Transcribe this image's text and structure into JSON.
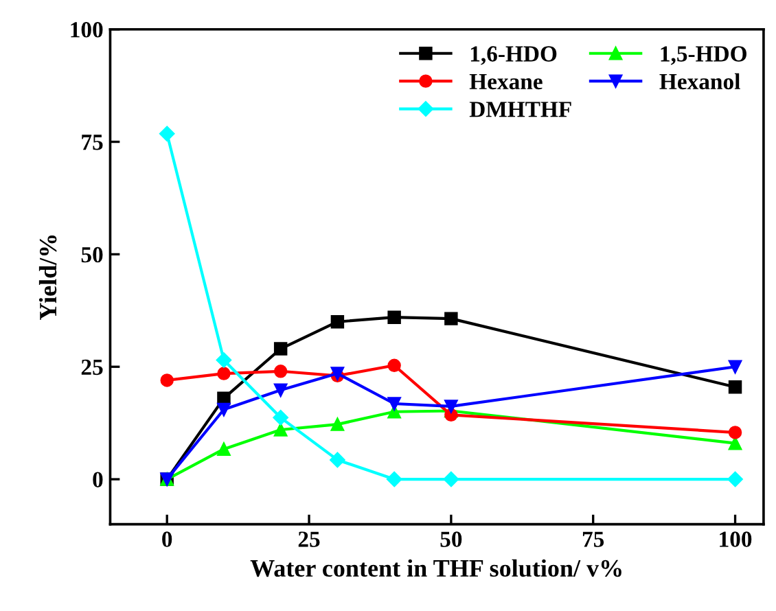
{
  "chart_data": {
    "type": "line",
    "xlabel": "Water content in THF solution/ v%",
    "ylabel": "Yield/%",
    "xlim": [
      -10,
      105
    ],
    "xticks": [
      0,
      25,
      50,
      75,
      100
    ],
    "ylim": [
      -10,
      100
    ],
    "yticks": [
      0,
      25,
      50,
      75,
      100
    ],
    "grid": false,
    "legend": "top right",
    "line_style": "solid",
    "series": [
      {
        "name": "1,6-HDO",
        "color": "#000000",
        "marker": "square",
        "x": [
          0,
          10,
          20,
          30,
          40,
          50,
          100
        ],
        "values": [
          0,
          18,
          29,
          35,
          36,
          35.7,
          20.5
        ]
      },
      {
        "name": "1,5-HDO",
        "color": "#00ff00",
        "marker": "triangle",
        "x": [
          0,
          10,
          20,
          30,
          40,
          50,
          100
        ],
        "values": [
          0,
          6.7,
          11,
          12.2,
          15,
          15.2,
          8
        ]
      },
      {
        "name": "Hexane",
        "color": "#ff0000",
        "marker": "circle",
        "x": [
          0,
          10,
          20,
          30,
          40,
          50,
          100
        ],
        "values": [
          22,
          23.5,
          24,
          23,
          25.3,
          14.3,
          10.4
        ]
      },
      {
        "name": "Hexanol",
        "color": "#0000ff",
        "marker": "triangle_down",
        "x": [
          0,
          10,
          20,
          30,
          40,
          50,
          100
        ],
        "values": [
          0,
          15.5,
          19.8,
          23.5,
          16.8,
          16.2,
          25
        ]
      },
      {
        "name": "DMHTHF",
        "color": "#00ffff",
        "marker": "diamond",
        "x": [
          0,
          10,
          20,
          30,
          40,
          50,
          100
        ],
        "values": [
          76.8,
          26.5,
          13.7,
          4.3,
          0,
          0,
          0
        ]
      }
    ]
  }
}
